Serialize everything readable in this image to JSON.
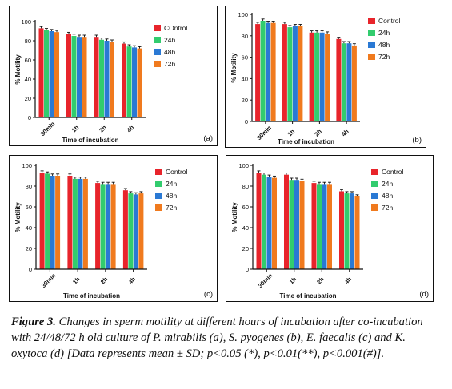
{
  "chart_data": [
    {
      "type": "bar",
      "panel_label": "(a)",
      "ylabel": "% Motility",
      "xlabel": "Time of incubation",
      "categories": [
        "30min",
        "1h",
        "2h",
        "4h"
      ],
      "ylim": [
        0,
        100
      ],
      "yticks": [
        0,
        20,
        40,
        60,
        80,
        100
      ],
      "legend": [
        "COntrol",
        "24h",
        "48h",
        "72h"
      ],
      "series": [
        {
          "name": "COntrol",
          "values": [
            93,
            87,
            84,
            77
          ]
        },
        {
          "name": "24h",
          "values": [
            91,
            85,
            81,
            74
          ]
        },
        {
          "name": "48h",
          "values": [
            90,
            84,
            80,
            73
          ]
        },
        {
          "name": "72h",
          "values": [
            89,
            84,
            79,
            72
          ]
        }
      ]
    },
    {
      "type": "bar",
      "panel_label": "(b)",
      "ylabel": "% Motility",
      "xlabel": "Time of incubation",
      "categories": [
        "30min",
        "1h",
        "2h",
        "4h"
      ],
      "ylim": [
        0,
        100
      ],
      "yticks": [
        0,
        20,
        40,
        60,
        80,
        100
      ],
      "legend": [
        "Control",
        "24h",
        "48h",
        "72h"
      ],
      "series": [
        {
          "name": "Control",
          "values": [
            91,
            91,
            83,
            77
          ]
        },
        {
          "name": "24h",
          "values": [
            94,
            88,
            83,
            73
          ]
        },
        {
          "name": "48h",
          "values": [
            92,
            89,
            83,
            73
          ]
        },
        {
          "name": "72h",
          "values": [
            92,
            89,
            82,
            71
          ]
        }
      ]
    },
    {
      "type": "bar",
      "panel_label": "(c)",
      "ylabel": "% Motility",
      "xlabel": "Time of incubation",
      "categories": [
        "30min",
        "1h",
        "2h",
        "4h"
      ],
      "ylim": [
        0,
        100
      ],
      "yticks": [
        0,
        20,
        40,
        60,
        80,
        100
      ],
      "legend": [
        "Control",
        "24h",
        "48h",
        "72h"
      ],
      "series": [
        {
          "name": "Control",
          "values": [
            93,
            90,
            83,
            76
          ]
        },
        {
          "name": "24h",
          "values": [
            92,
            87,
            82,
            73
          ]
        },
        {
          "name": "48h",
          "values": [
            90,
            87,
            82,
            72
          ]
        },
        {
          "name": "72h",
          "values": [
            90,
            87,
            82,
            73
          ]
        }
      ]
    },
    {
      "type": "bar",
      "panel_label": "(d)",
      "ylabel": "% Motility",
      "xlabel": "Time of incubation",
      "categories": [
        "30min",
        "1h",
        "2h",
        "4h"
      ],
      "ylim": [
        0,
        100
      ],
      "yticks": [
        0,
        20,
        40,
        60,
        80,
        100
      ],
      "legend": [
        "Control",
        "24h",
        "48h",
        "72h"
      ],
      "series": [
        {
          "name": "Control",
          "values": [
            93,
            91,
            83,
            75
          ]
        },
        {
          "name": "24h",
          "values": [
            91,
            86,
            82,
            73
          ]
        },
        {
          "name": "48h",
          "values": [
            89,
            86,
            82,
            73
          ]
        },
        {
          "name": "72h",
          "values": [
            88,
            85,
            82,
            70
          ]
        }
      ]
    }
  ],
  "colors": [
    "#e8242b",
    "#32cc6e",
    "#2a79d4",
    "#f07a1e"
  ],
  "caption": {
    "label": "Figure 3.",
    "text": " Changes in sperm motility at different hours of incubation after co-incubation with 24/48/72 h old culture of P. mirabilis (a), S. pyogenes (b), E. faecalis (c) and K. oxytoca (d) [Data represents mean ± SD; p<0.05 (*), p<0.01(**), p<0.001(#)]."
  }
}
